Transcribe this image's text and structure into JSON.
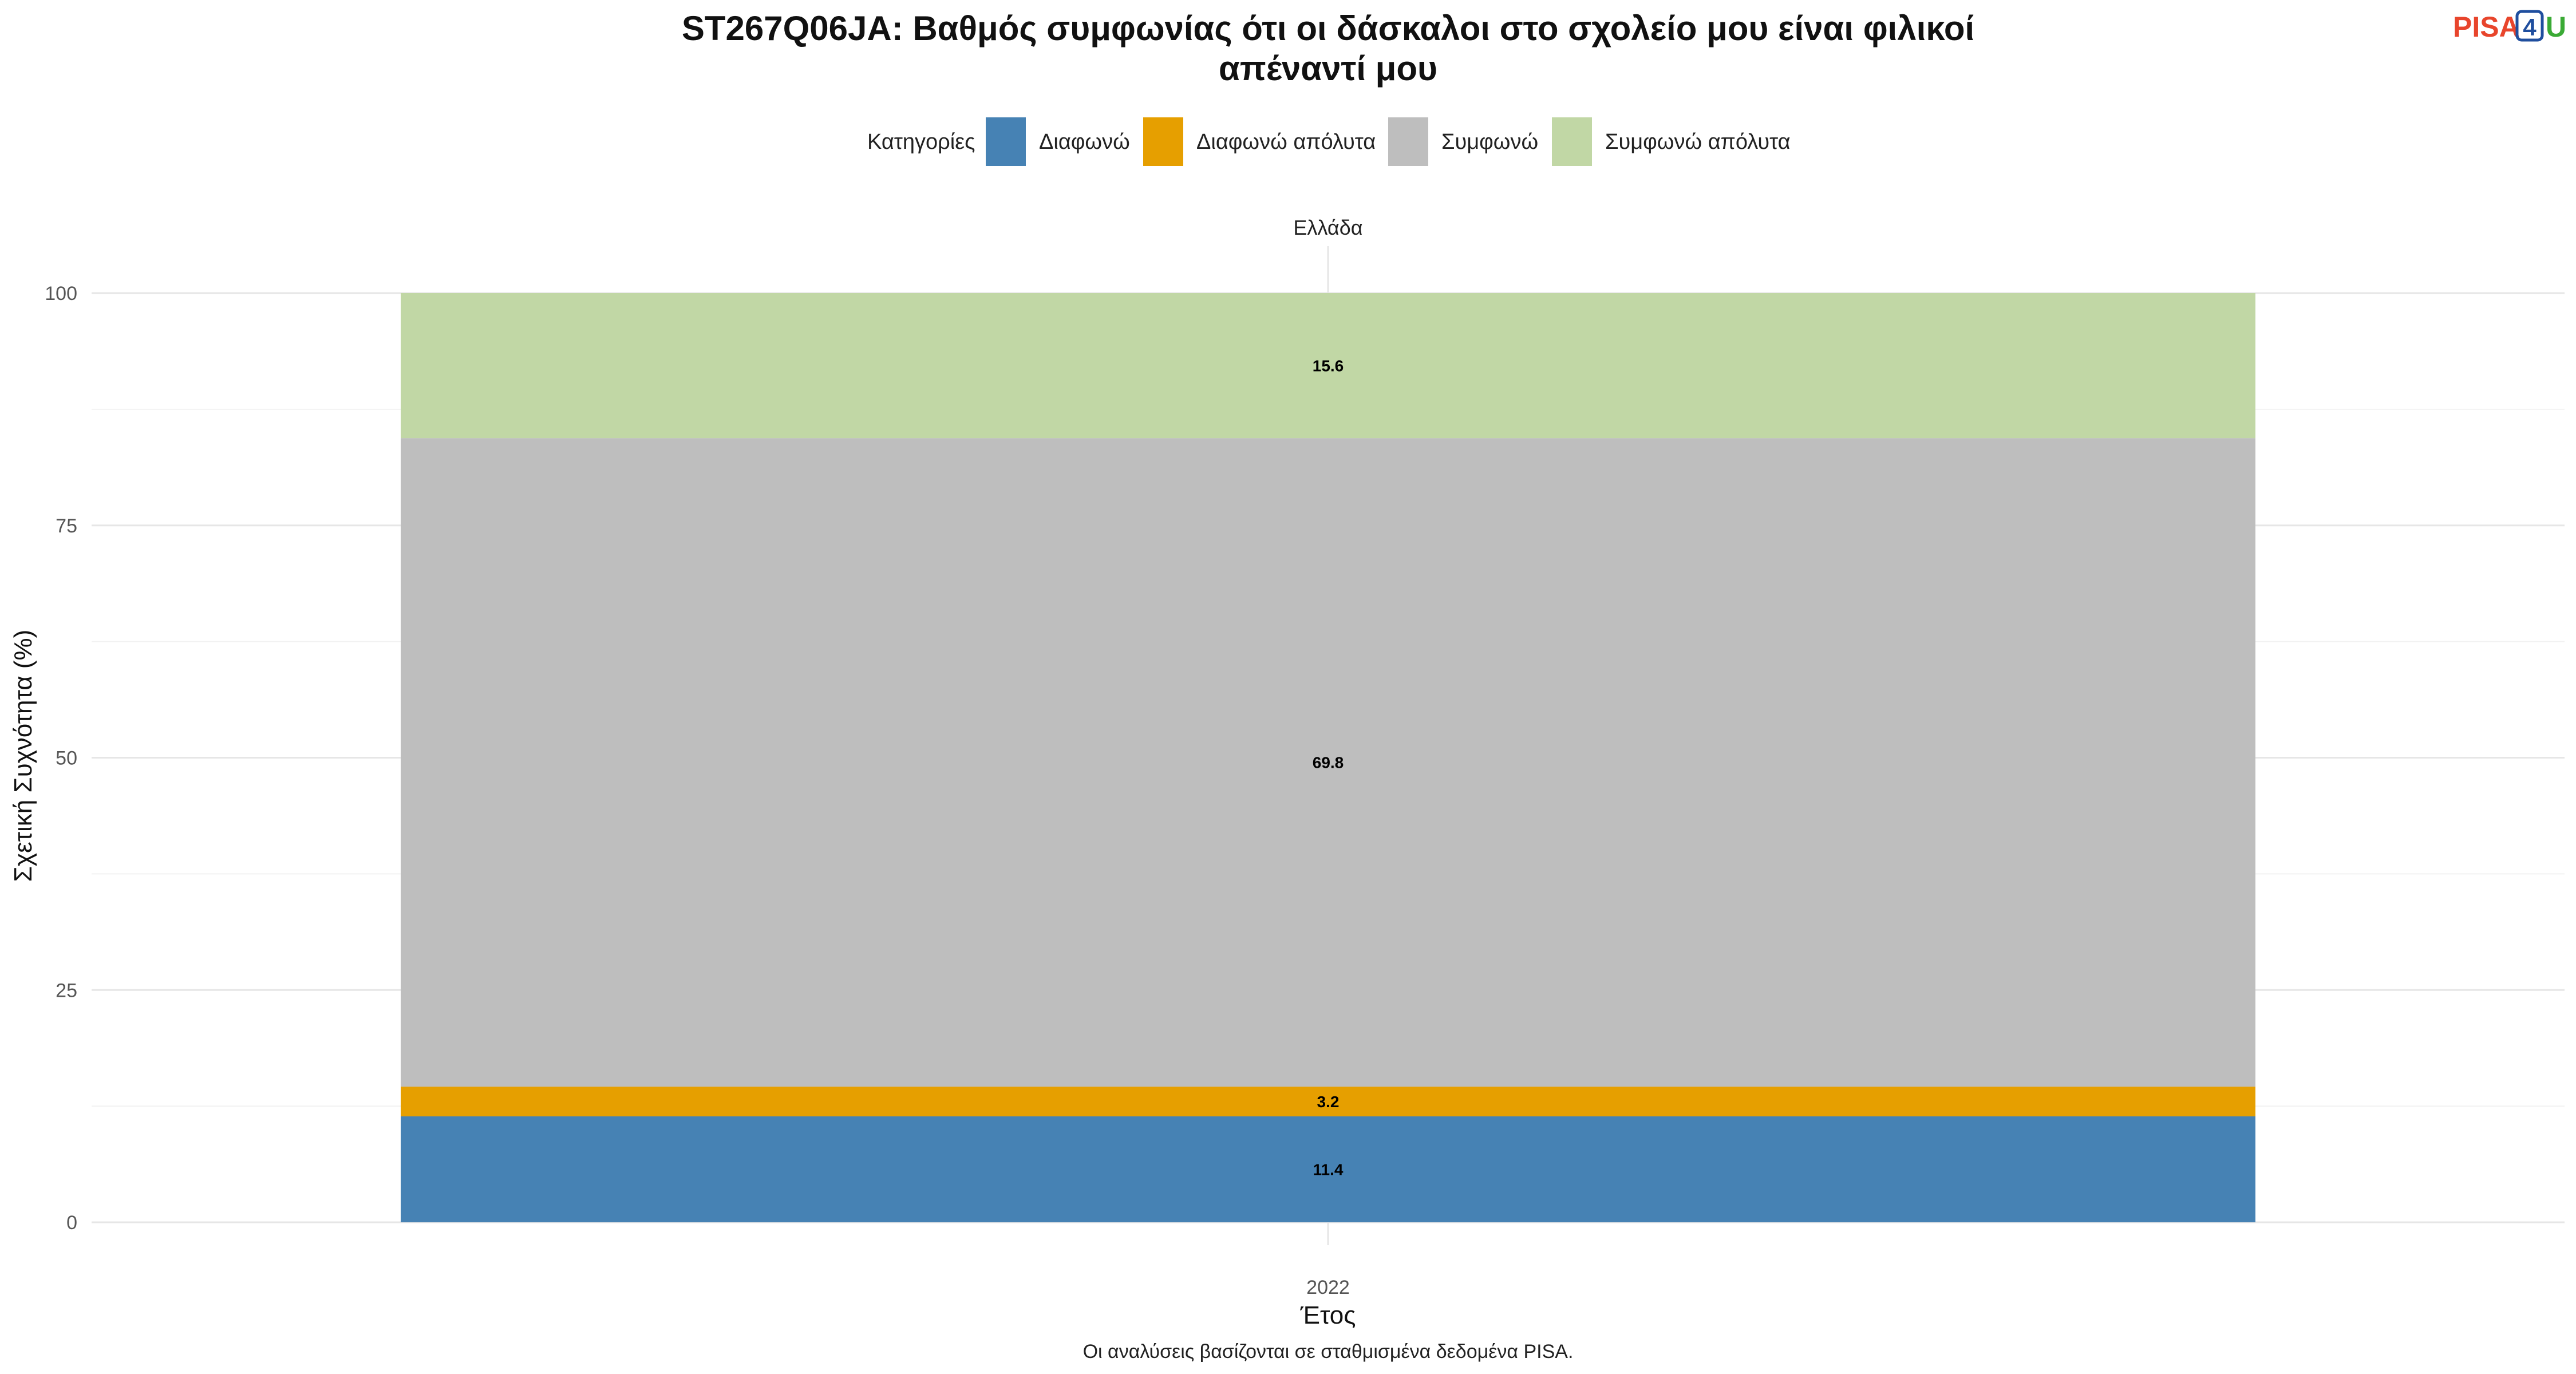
{
  "chart_data": {
    "type": "bar",
    "stacked": true,
    "title_lines": [
      "ST267Q06JA: Βαθμός συμφωνίας ότι οι δάσκαλοι στο σχολείο μου είναι φιλικοί",
      "απέναντί μου"
    ],
    "facet": "Ελλάδα",
    "xlabel": "Έτος",
    "ylabel": "Σχετική Συχνότητα (%)",
    "categories": [
      "2022"
    ],
    "ylim": [
      0,
      100
    ],
    "yticks": [
      0,
      25,
      50,
      75,
      100
    ],
    "legend_title": "Κατηγορίες",
    "legend_position": "top",
    "grid": true,
    "series": [
      {
        "name": "Διαφωνώ",
        "color": "#4682B4",
        "values": [
          11.4
        ],
        "label": "11.4"
      },
      {
        "name": "Διαφωνώ απόλυτα",
        "color": "#E69F00",
        "values": [
          3.2
        ],
        "label": "3.2"
      },
      {
        "name": "Συμφωνώ",
        "color": "#BEBEBE",
        "values": [
          69.8
        ],
        "label": "69.8"
      },
      {
        "name": "Συμφωνώ απόλυτα",
        "color": "#C1D7A5",
        "values": [
          15.6
        ],
        "label": "15.6"
      }
    ],
    "caption": "Οι αναλύσεις βασίζονται σε σταθμισμένα δεδομένα PISA."
  },
  "logo": {
    "text_pisa": "PISA",
    "text_num": "4",
    "text_u": "U",
    "color_pisa": "#E8452C",
    "color_num": "#1F4E9E",
    "color_u": "#3AAA35"
  }
}
